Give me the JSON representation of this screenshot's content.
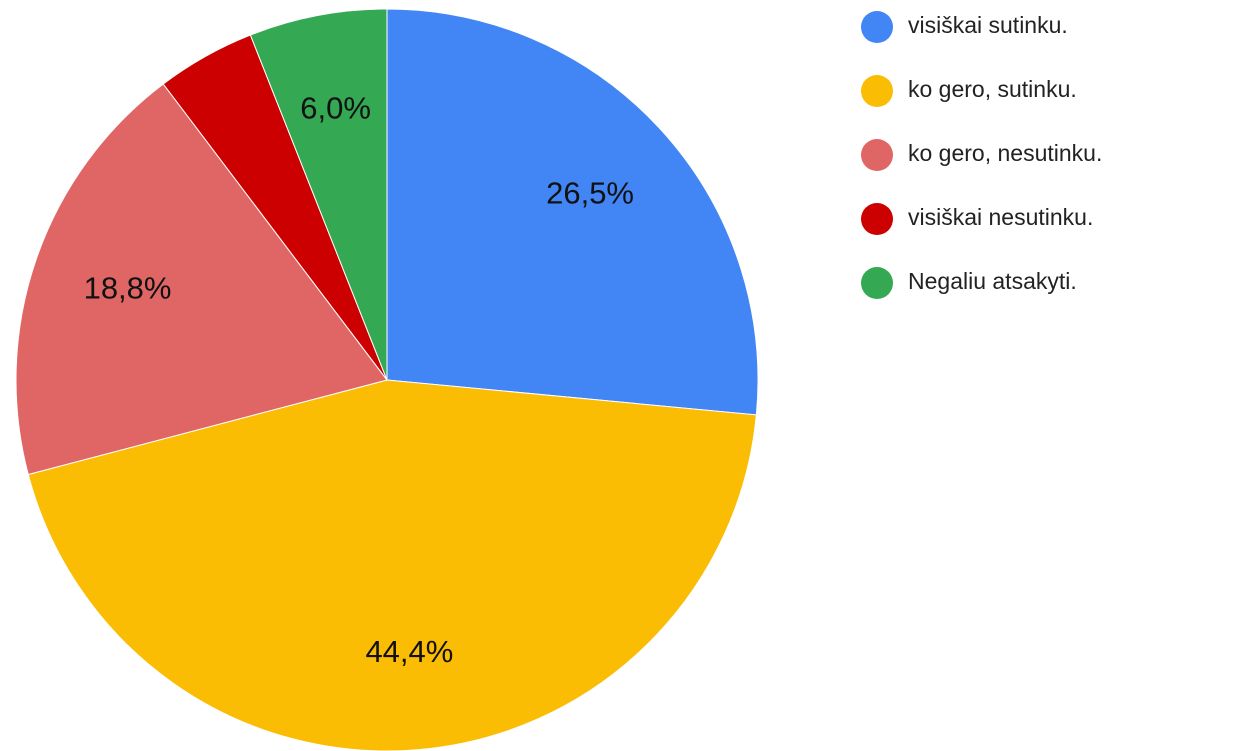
{
  "chart_data": {
    "type": "pie",
    "categories": [
      "visiškai sutinku.",
      "ko gero, sutinku.",
      "ko gero, nesutinku.",
      "visiškai nesutinku.",
      "Negaliu atsakyti."
    ],
    "values": [
      26.5,
      44.4,
      18.8,
      4.3,
      6.0
    ],
    "value_labels": [
      "26,5%",
      "44,4%",
      "18,8%",
      null,
      "6,0%"
    ],
    "colors": [
      "#4285f4",
      "#fbbc04",
      "#e06666",
      "#cc0000",
      "#34a853"
    ],
    "legend": "right"
  }
}
